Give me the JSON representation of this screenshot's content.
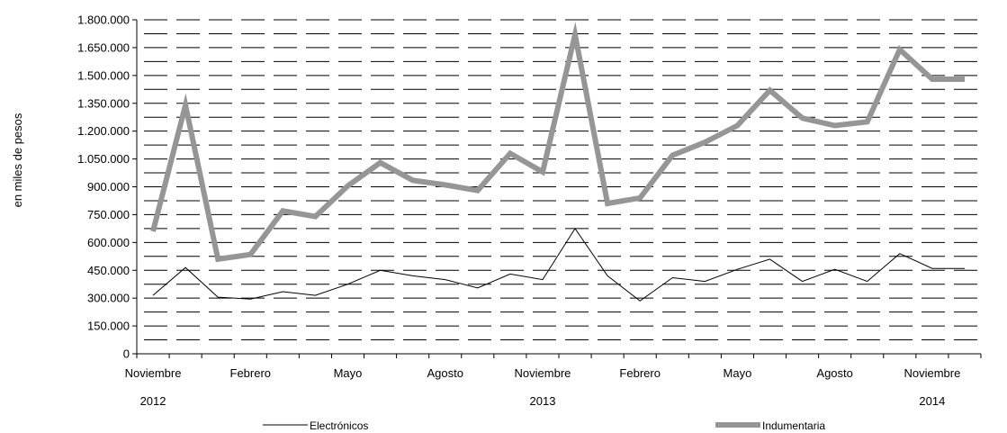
{
  "chart_data": {
    "type": "line",
    "ylabel": "en miles de pesos",
    "ylim": [
      0,
      1800000
    ],
    "yticks": [
      "0",
      "150.000",
      "300.000",
      "450.000",
      "600.000",
      "750.000",
      "900.000",
      "1.050.000",
      "1.200.000",
      "1.350.000",
      "1.500.000",
      "1.650.000",
      "1.800.000"
    ],
    "x": [
      "2012-11",
      "2012-12",
      "2013-01",
      "2013-02",
      "2013-03",
      "2013-04",
      "2013-05",
      "2013-06",
      "2013-07",
      "2013-08",
      "2013-09",
      "2013-10",
      "2013-11",
      "2013-12",
      "2014-01",
      "2014-02",
      "2014-03",
      "2014-04",
      "2014-05",
      "2014-06",
      "2014-07",
      "2014-08",
      "2014-09",
      "2014-10",
      "2014-11",
      "2014-12"
    ],
    "x_month_labels": [
      {
        "index": 0,
        "label": "Noviembre"
      },
      {
        "index": 3,
        "label": "Febrero"
      },
      {
        "index": 6,
        "label": "Mayo"
      },
      {
        "index": 9,
        "label": "Agosto"
      },
      {
        "index": 12,
        "label": "Noviembre"
      },
      {
        "index": 15,
        "label": "Febrero"
      },
      {
        "index": 18,
        "label": "Mayo"
      },
      {
        "index": 21,
        "label": "Agosto"
      },
      {
        "index": 24,
        "label": "Noviembre"
      }
    ],
    "x_year_labels": [
      {
        "index": 0,
        "label": "2012"
      },
      {
        "index": 12,
        "label": "2013"
      },
      {
        "index": 24,
        "label": "2014"
      }
    ],
    "series": [
      {
        "name": "Electrónicos",
        "color": "#000000",
        "values": [
          315000,
          465000,
          305000,
          295000,
          335000,
          315000,
          375000,
          450000,
          420000,
          400000,
          355000,
          430000,
          400000,
          675000,
          420000,
          285000,
          410000,
          390000,
          455000,
          510000,
          390000,
          455000,
          390000,
          540000,
          460000,
          460000
        ]
      },
      {
        "name": "Indumentaria",
        "color": "#969696",
        "values": [
          660000,
          1340000,
          510000,
          535000,
          770000,
          740000,
          905000,
          1030000,
          935000,
          910000,
          880000,
          1080000,
          980000,
          1720000,
          810000,
          840000,
          1070000,
          1140000,
          1230000,
          1420000,
          1270000,
          1230000,
          1250000,
          1640000,
          1480000,
          1480000
        ]
      }
    ],
    "legend": "bottom",
    "grid": true
  }
}
